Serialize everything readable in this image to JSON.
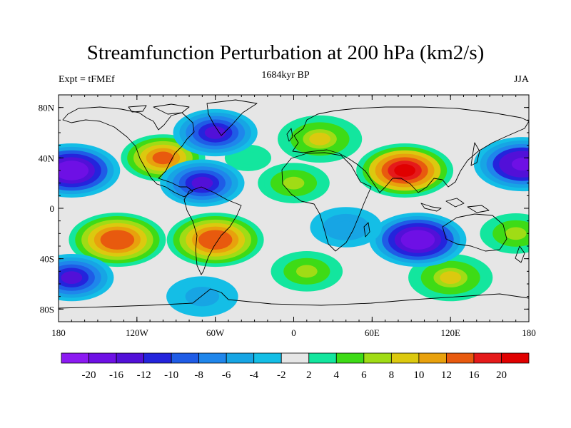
{
  "title": "Streamfunction Perturbation at 200 hPa (km2/s)",
  "subtitle_left": "Expt = tFMEf",
  "subtitle_center": "1684kyr BP",
  "subtitle_right": "JJA",
  "map": {
    "projection": "cylindrical-equidistant",
    "lon_range": [
      -180,
      180
    ],
    "lat_range": [
      -90,
      90
    ],
    "coastlines": true,
    "x_ticks": [
      {
        "value": -180,
        "label": "180"
      },
      {
        "value": -120,
        "label": "120W"
      },
      {
        "value": -60,
        "label": "60W"
      },
      {
        "value": 0,
        "label": "0"
      },
      {
        "value": 60,
        "label": "60E"
      },
      {
        "value": 120,
        "label": "120E"
      },
      {
        "value": 180,
        "label": "180"
      }
    ],
    "y_ticks": [
      {
        "value": 80,
        "label": "80N"
      },
      {
        "value": 40,
        "label": "40N"
      },
      {
        "value": 0,
        "label": "0"
      },
      {
        "value": -40,
        "label": "40S"
      },
      {
        "value": -80,
        "label": "80S"
      }
    ],
    "minor_x_step": 10,
    "minor_y_step": 10,
    "features": [
      {
        "name": "asia-high",
        "lon": 85,
        "lat": 30,
        "peak": 20
      },
      {
        "name": "europe-high",
        "lon": 20,
        "lat": 55,
        "peak": 8
      },
      {
        "name": "north-africa-high",
        "lon": 0,
        "lat": 20,
        "peak": 6
      },
      {
        "name": "north-america-high",
        "lon": -100,
        "lat": 40,
        "peak": 12
      },
      {
        "name": "north-atlantic-high",
        "lon": -35,
        "lat": 40,
        "peak": 3
      },
      {
        "name": "south-pacific-high",
        "lon": -135,
        "lat": -25,
        "peak": 14
      },
      {
        "name": "south-america-high",
        "lon": -60,
        "lat": -25,
        "peak": 14
      },
      {
        "name": "south-atlantic-high",
        "lon": 10,
        "lat": -50,
        "peak": 6
      },
      {
        "name": "southern-indian-high",
        "lon": 120,
        "lat": -55,
        "peak": 8
      },
      {
        "name": "west-pacific-high",
        "lon": 170,
        "lat": -20,
        "peak": 6
      },
      {
        "name": "north-pacific-low",
        "lon": -170,
        "lat": 30,
        "peak": -20
      },
      {
        "name": "north-pacific-low-east",
        "lon": 175,
        "lat": 35,
        "peak": -18
      },
      {
        "name": "greenland-low",
        "lon": -60,
        "lat": 60,
        "peak": -14
      },
      {
        "name": "caribbean-low",
        "lon": -70,
        "lat": 20,
        "peak": -14
      },
      {
        "name": "australia-low",
        "lon": 95,
        "lat": -25,
        "peak": -20
      },
      {
        "name": "indian-low",
        "lon": 40,
        "lat": -15,
        "peak": -6
      },
      {
        "name": "southeast-pacific-low",
        "lon": -170,
        "lat": -55,
        "peak": -14
      },
      {
        "name": "antarctic-low",
        "lon": -70,
        "lat": -70,
        "peak": -5
      }
    ]
  },
  "colorbar": {
    "labels": [
      "-20",
      "-16",
      "-12",
      "-10",
      "-8",
      "-6",
      "-4",
      "-2",
      "2",
      "4",
      "6",
      "8",
      "10",
      "12",
      "16",
      "20"
    ],
    "colors": [
      "#8C1AF2",
      "#6E10E5",
      "#5210D8",
      "#2424DC",
      "#1F5CE6",
      "#1F86EB",
      "#17A5E4",
      "#14BEE6",
      "#E6E6E6",
      "#13E69E",
      "#3EDB16",
      "#A0DC15",
      "#DCC90F",
      "#E8A10D",
      "#E85A0E",
      "#E51A1A",
      "#E00000"
    ]
  }
}
